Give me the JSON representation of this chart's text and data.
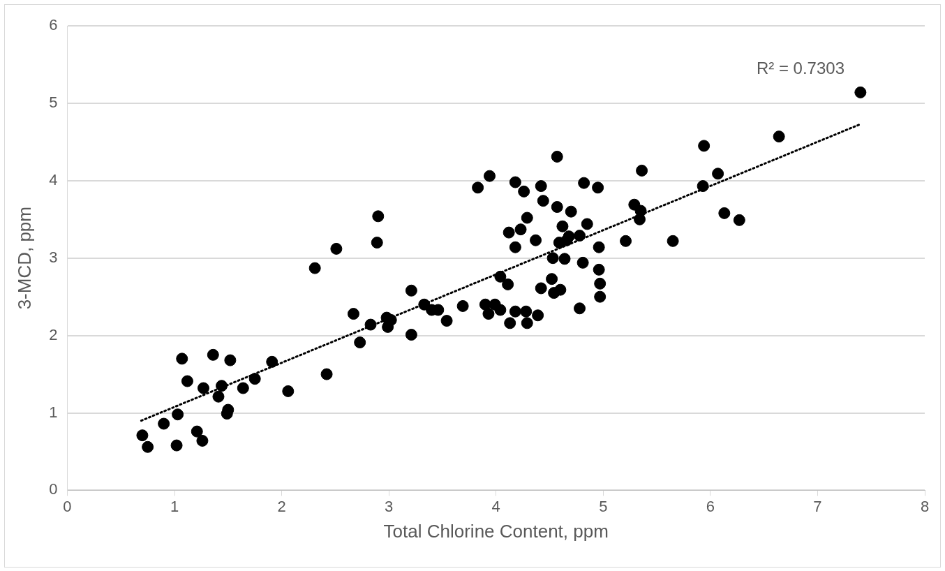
{
  "chart_data": {
    "type": "scatter",
    "xlabel": "Total Chlorine Content, ppm",
    "ylabel": "3-MCD, ppm",
    "xlim": [
      0,
      8
    ],
    "xticks": [
      0,
      1,
      2,
      3,
      4,
      5,
      6,
      7,
      8
    ],
    "ylim": [
      0,
      6
    ],
    "yticks": [
      0,
      1,
      2,
      3,
      4,
      5,
      6
    ],
    "grid": "y",
    "legend": false,
    "marker": "circle",
    "annotations": [
      "R² = 0.7303"
    ],
    "series": [
      {
        "type": "scatter",
        "color": "#000000",
        "x": [
          0.7,
          0.75,
          0.9,
          1.03,
          1.02,
          1.07,
          1.12,
          1.21,
          1.26,
          1.27,
          1.36,
          1.41,
          1.44,
          1.49,
          1.5,
          1.52,
          1.64,
          1.75,
          1.91,
          2.06,
          2.42,
          2.31,
          2.51,
          2.67,
          2.73,
          2.83,
          2.89,
          2.9,
          2.98,
          2.99,
          3.02,
          3.21,
          3.21,
          3.33,
          3.4,
          3.46,
          3.54,
          3.69,
          3.83,
          3.94,
          3.9,
          3.93,
          3.99,
          4.04,
          4.04,
          4.11,
          4.12,
          4.13,
          4.18,
          4.18,
          4.18,
          4.23,
          4.26,
          4.28,
          4.29,
          4.29,
          4.37,
          4.39,
          4.42,
          4.42,
          4.44,
          4.52,
          4.53,
          4.54,
          4.57,
          4.57,
          4.59,
          4.6,
          4.62,
          4.64,
          4.66,
          4.68,
          4.7,
          4.78,
          4.78,
          4.81,
          4.82,
          4.85,
          4.95,
          4.96,
          4.96,
          4.97,
          4.97,
          5.21,
          5.29,
          5.35,
          5.34,
          5.36,
          5.65,
          5.93,
          5.94,
          6.07,
          6.13,
          6.27,
          6.64,
          7.4
        ],
        "values": [
          0.71,
          0.56,
          0.86,
          0.98,
          0.58,
          1.7,
          1.41,
          0.76,
          0.64,
          1.32,
          1.75,
          1.21,
          1.35,
          0.99,
          1.04,
          1.68,
          1.32,
          1.44,
          1.66,
          1.28,
          1.5,
          2.87,
          3.12,
          2.28,
          1.91,
          2.14,
          3.2,
          3.54,
          2.23,
          2.11,
          2.2,
          2.01,
          2.58,
          2.4,
          2.33,
          2.33,
          2.19,
          2.38,
          3.91,
          4.06,
          2.4,
          2.28,
          2.4,
          2.33,
          2.76,
          2.66,
          3.33,
          2.16,
          3.98,
          3.14,
          2.31,
          3.37,
          3.86,
          2.31,
          3.52,
          2.16,
          3.23,
          2.26,
          3.93,
          2.61,
          3.74,
          2.73,
          3.0,
          2.55,
          4.31,
          3.66,
          3.2,
          2.59,
          3.41,
          2.99,
          3.23,
          3.28,
          3.6,
          3.29,
          2.35,
          2.94,
          3.97,
          3.44,
          3.91,
          3.14,
          2.85,
          2.67,
          2.5,
          3.22,
          3.69,
          3.61,
          3.5,
          4.13,
          3.22,
          3.93,
          4.45,
          4.09,
          3.58,
          3.49,
          4.57,
          5.14
        ]
      },
      {
        "type": "line",
        "color": "#000000",
        "line_style": "dotted",
        "marker": "none",
        "x": [
          0.69,
          7.4
        ],
        "values": [
          0.9,
          4.73
        ]
      }
    ]
  }
}
